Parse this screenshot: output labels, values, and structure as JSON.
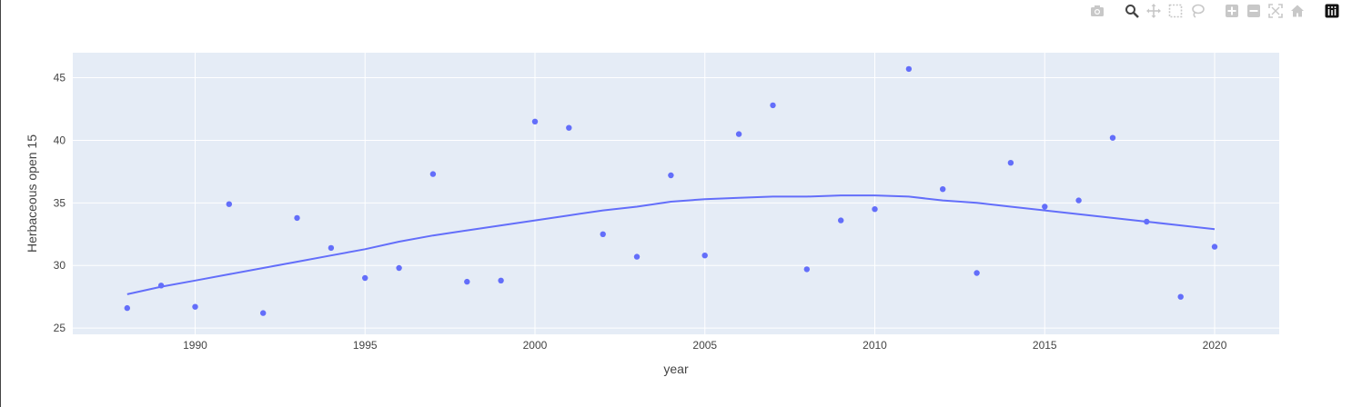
{
  "modebar": {
    "buttons": [
      {
        "name": "camera-icon",
        "group": 0
      },
      {
        "name": "zoom-icon",
        "group": 1,
        "active": true
      },
      {
        "name": "pan-icon",
        "group": 1
      },
      {
        "name": "box-select-icon",
        "group": 1
      },
      {
        "name": "lasso-select-icon",
        "group": 1
      },
      {
        "name": "zoom-in-icon",
        "group": 2
      },
      {
        "name": "zoom-out-icon",
        "group": 2
      },
      {
        "name": "autoscale-icon",
        "group": 2
      },
      {
        "name": "reset-axes-icon",
        "group": 2
      },
      {
        "name": "plotly-logo-icon",
        "group": 3
      }
    ]
  },
  "colors": {
    "plot_bg": "#e5ecf6",
    "grid": "#ffffff",
    "marker": "#636efa",
    "trendline": "#636efa",
    "icon": "#c8c8c8",
    "icon_active": "#444444"
  },
  "chart_data": {
    "type": "scatter",
    "xlabel": "year",
    "ylabel": "Herbaceous open 15",
    "xlim": [
      1986.4,
      2021.9
    ],
    "ylim": [
      24.5,
      47
    ],
    "xticks": [
      1990,
      1995,
      2000,
      2005,
      2010,
      2015,
      2020
    ],
    "yticks": [
      25,
      30,
      35,
      40,
      45
    ],
    "grid": true,
    "series": [
      {
        "mode": "markers",
        "x": [
          1988,
          1989,
          1990,
          1991,
          1992,
          1993,
          1994,
          1995,
          1996,
          1997,
          1998,
          1999,
          2000,
          2001,
          2002,
          2003,
          2004,
          2005,
          2006,
          2007,
          2008,
          2009,
          2010,
          2011,
          2012,
          2013,
          2014,
          2015,
          2016,
          2017,
          2018,
          2019,
          2020
        ],
        "y": [
          26.6,
          28.4,
          26.7,
          34.9,
          26.2,
          33.8,
          31.4,
          29.0,
          29.8,
          37.3,
          28.7,
          28.8,
          41.5,
          41.0,
          32.5,
          30.7,
          37.2,
          30.8,
          40.5,
          42.8,
          29.7,
          33.6,
          34.5,
          45.7,
          36.1,
          29.4,
          38.2,
          34.7,
          35.2,
          40.2,
          33.5,
          27.5,
          31.5
        ]
      },
      {
        "mode": "lines",
        "x": [
          1988,
          1989,
          1990,
          1991,
          1992,
          1993,
          1994,
          1995,
          1996,
          1997,
          1998,
          1999,
          2000,
          2001,
          2002,
          2003,
          2004,
          2005,
          2006,
          2007,
          2008,
          2009,
          2010,
          2011,
          2012,
          2013,
          2014,
          2015,
          2016,
          2017,
          2018,
          2019,
          2020
        ],
        "y": [
          27.7,
          28.3,
          28.8,
          29.3,
          29.8,
          30.3,
          30.8,
          31.3,
          31.9,
          32.4,
          32.8,
          33.2,
          33.6,
          34.0,
          34.4,
          34.7,
          35.1,
          35.3,
          35.4,
          35.5,
          35.5,
          35.6,
          35.6,
          35.5,
          35.2,
          35.0,
          34.7,
          34.4,
          34.1,
          33.8,
          33.5,
          33.2,
          32.9
        ]
      }
    ]
  }
}
